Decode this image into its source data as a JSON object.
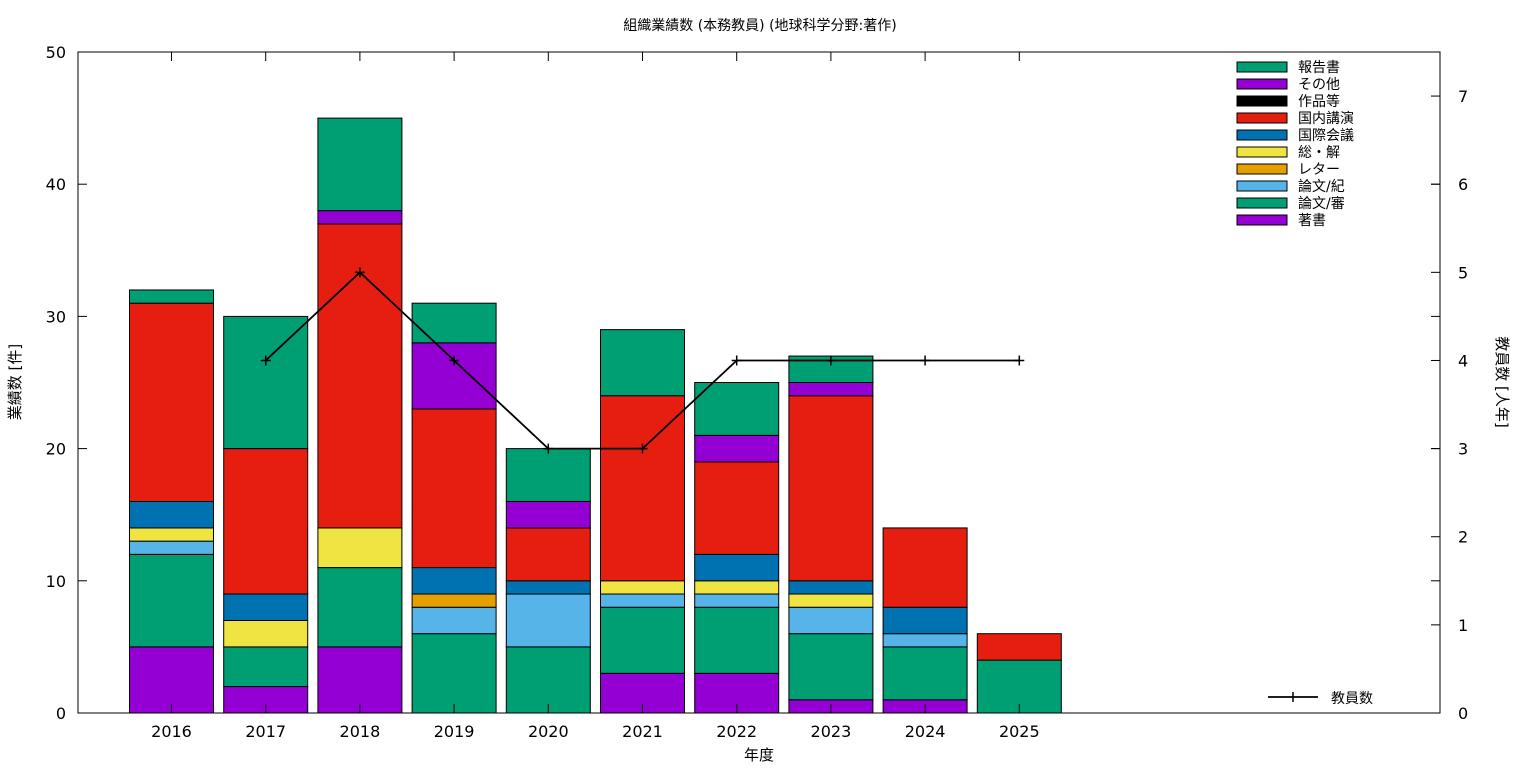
{
  "chart_data": {
    "type": "bar",
    "stacked": true,
    "title": "組織業績数 (本務教員) (地球科学分野:著作)",
    "xlabel": "年度",
    "ylabel": "業績数 [件]",
    "y2label": "教員数 [人年]",
    "ylim": [
      0,
      50
    ],
    "y2lim": [
      0,
      7.5
    ],
    "yticks": [
      0,
      10,
      20,
      30,
      40,
      50
    ],
    "y2ticks": [
      0,
      1,
      2,
      3,
      4,
      5,
      6,
      7
    ],
    "grid": false,
    "legend_position": "top-right",
    "categories": [
      "2016",
      "2017",
      "2018",
      "2019",
      "2020",
      "2021",
      "2022",
      "2023",
      "2024",
      "2025"
    ],
    "series": [
      {
        "name": "著書",
        "color": "#9400d3",
        "values": [
          5,
          2,
          5,
          0,
          0,
          3,
          3,
          1,
          1,
          0
        ]
      },
      {
        "name": "論文/審",
        "color": "#009e73",
        "values": [
          7,
          3,
          6,
          6,
          5,
          5,
          5,
          5,
          4,
          4
        ]
      },
      {
        "name": "論文/紀",
        "color": "#56b4e9",
        "values": [
          1,
          0,
          0,
          2,
          4,
          1,
          1,
          2,
          1,
          0
        ]
      },
      {
        "name": "レター",
        "color": "#e69f00",
        "values": [
          0,
          0,
          0,
          1,
          0,
          0,
          0,
          0,
          0,
          0
        ]
      },
      {
        "name": "総・解",
        "color": "#f0e442",
        "values": [
          1,
          2,
          3,
          0,
          0,
          1,
          1,
          1,
          0,
          0
        ]
      },
      {
        "name": "国際会議",
        "color": "#0072b2",
        "values": [
          2,
          2,
          0,
          2,
          1,
          0,
          2,
          1,
          2,
          0
        ]
      },
      {
        "name": "国内講演",
        "color": "#e51e10",
        "values": [
          15,
          11,
          23,
          12,
          4,
          14,
          7,
          14,
          6,
          2
        ]
      },
      {
        "name": "作品等",
        "color": "#000000",
        "values": [
          0,
          0,
          0,
          0,
          0,
          0,
          0,
          0,
          0,
          0
        ]
      },
      {
        "name": "その他",
        "color": "#9400d3",
        "values": [
          0,
          0,
          1,
          5,
          2,
          0,
          2,
          1,
          0,
          0
        ]
      },
      {
        "name": "報告書",
        "color": "#009e73",
        "values": [
          1,
          10,
          7,
          3,
          4,
          5,
          4,
          2,
          0,
          0
        ]
      }
    ],
    "line_series": {
      "name": "教員数",
      "color": "#000000",
      "axis": "y2",
      "categories": [
        "2017",
        "2018",
        "2019",
        "2020",
        "2021",
        "2022",
        "2023",
        "2024",
        "2025"
      ],
      "values": [
        4,
        5,
        4,
        3,
        3,
        4,
        4,
        4,
        4
      ]
    }
  }
}
